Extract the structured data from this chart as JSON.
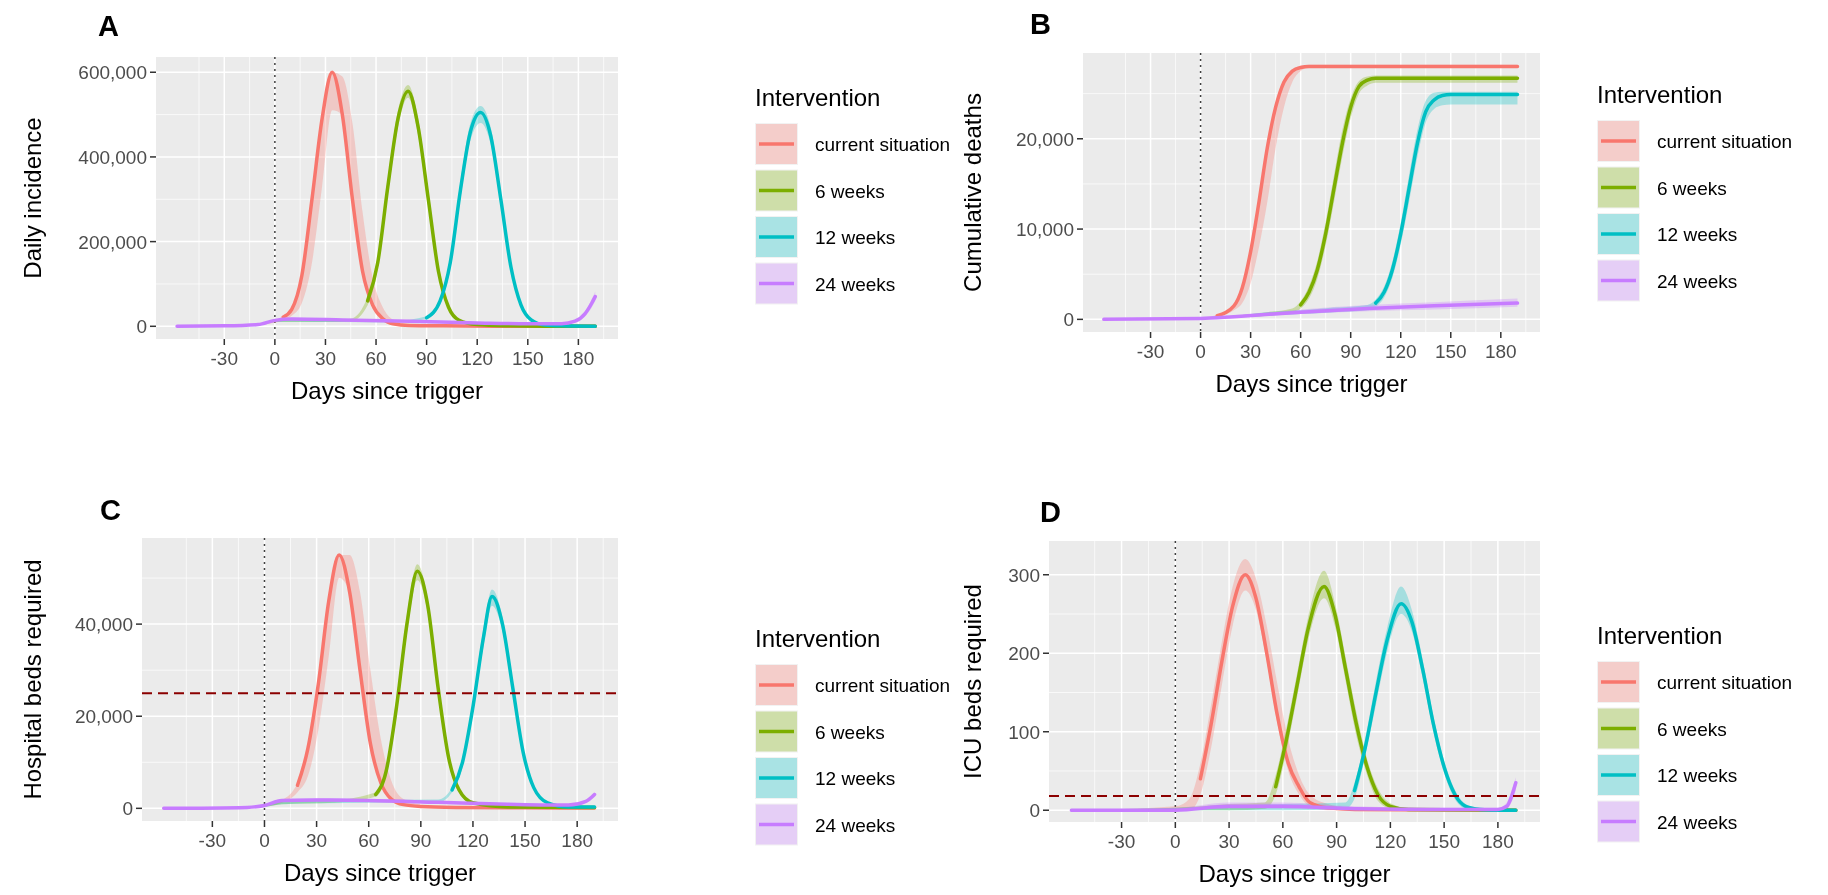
{
  "chart_data": [
    {
      "type": "line",
      "title": "A",
      "xlabel": "Days since trigger",
      "ylabel": "Daily incidence",
      "legend_title": "Intervention",
      "legend": "right",
      "grid": true,
      "xlim": [
        -70.5,
        203.5
      ],
      "xticks": [
        -30,
        0,
        30,
        60,
        90,
        120,
        150,
        180
      ],
      "ylim": [
        -30000,
        636000
      ],
      "yticks": [
        0,
        {
          "value": 200000,
          "label": "200,000"
        },
        {
          "value": 400000,
          "label": "400,000"
        },
        {
          "value": 600000,
          "label": "600,000"
        }
      ],
      "ref_lines": [
        {
          "axis": "x",
          "value": 0,
          "color": "#404040",
          "line_style": "dotted"
        }
      ],
      "series": [
        {
          "name": "current situation",
          "color": "#f8766d",
          "x": [
            -58,
            -30,
            -10,
            5,
            10,
            16,
            22,
            28,
            34,
            40,
            46,
            52,
            58,
            64,
            70,
            80,
            100,
            130,
            160,
            190
          ],
          "values": [
            null,
            null,
            null,
            22000,
            40000,
            120000,
            300000,
            490000,
            600000,
            500000,
            300000,
            130000,
            50000,
            18000,
            6000,
            2000,
            1000,
            0,
            0,
            0
          ],
          "lower": [
            0,
            0,
            3000,
            15000,
            25000,
            55000,
            150000,
            330000,
            510000,
            500000,
            300000,
            130000,
            50000,
            18000,
            6000,
            1000,
            0,
            0,
            0,
            0
          ],
          "upper": [
            0,
            2000,
            5000,
            25000,
            40000,
            120000,
            300000,
            490000,
            600000,
            590000,
            480000,
            270000,
            115000,
            45000,
            16000,
            5000,
            2000,
            1000,
            0,
            0
          ]
        },
        {
          "name": "6 weeks",
          "color": "#7cae00",
          "x": [
            -58,
            -30,
            -10,
            0,
            10,
            30,
            45,
            55,
            61,
            67,
            73,
            79,
            85,
            91,
            97,
            103,
            109,
            120,
            140,
            160,
            190
          ],
          "values": [
            null,
            null,
            null,
            null,
            null,
            null,
            null,
            60000,
            150000,
            330000,
            490000,
            555000,
            470000,
            300000,
            130000,
            45000,
            15000,
            4000,
            1000,
            0,
            0
          ],
          "lower": [
            0,
            0,
            3000,
            10000,
            10000,
            10000,
            12000,
            50000,
            135000,
            310000,
            470000,
            540000,
            450000,
            280000,
            120000,
            40000,
            12000,
            3000,
            0,
            0,
            0
          ],
          "upper": [
            0,
            2000,
            5000,
            14000,
            14000,
            14000,
            18000,
            70000,
            165000,
            350000,
            510000,
            570000,
            490000,
            320000,
            145000,
            52000,
            18000,
            5000,
            1000,
            1000,
            0
          ]
        },
        {
          "name": "12 weeks",
          "color": "#00bfc4",
          "x": [
            -58,
            -30,
            -10,
            0,
            10,
            40,
            70,
            90,
            98,
            104,
            110,
            116,
            122,
            128,
            134,
            140,
            146,
            152,
            160,
            170,
            190
          ],
          "values": [
            null,
            null,
            null,
            null,
            null,
            null,
            null,
            20000,
            60000,
            150000,
            320000,
            460000,
            505000,
            450000,
            300000,
            140000,
            50000,
            15000,
            3000,
            1000,
            0
          ],
          "lower": [
            0,
            0,
            3000,
            10000,
            11000,
            10000,
            9000,
            17000,
            52000,
            135000,
            300000,
            440000,
            480000,
            430000,
            285000,
            130000,
            45000,
            12000,
            2000,
            0,
            0
          ],
          "upper": [
            0,
            2000,
            5000,
            14000,
            15000,
            14000,
            13000,
            24000,
            68000,
            165000,
            340000,
            480000,
            520000,
            470000,
            315000,
            150000,
            56000,
            18000,
            4000,
            1000,
            1000
          ]
        },
        {
          "name": "24 weeks",
          "color": "#c77cff",
          "x": [
            -58,
            -30,
            -10,
            0,
            10,
            40,
            80,
            120,
            150,
            170,
            178,
            184,
            188,
            190
          ],
          "values": [
            0,
            1000,
            4000,
            14000,
            17000,
            15000,
            12000,
            8000,
            6000,
            6000,
            12000,
            30000,
            55000,
            70000
          ],
          "lower": [
            0,
            0,
            3000,
            12000,
            14000,
            12000,
            10000,
            6000,
            4000,
            4000,
            9000,
            24000,
            45000,
            60000
          ],
          "upper": [
            0,
            2000,
            5000,
            16000,
            20000,
            18000,
            14000,
            10000,
            8000,
            8000,
            15000,
            36000,
            65000,
            82000
          ]
        }
      ]
    },
    {
      "type": "line",
      "title": "B",
      "xlabel": "Days since trigger",
      "ylabel": "Cumulative deaths",
      "legend_title": "Intervention",
      "legend": "right",
      "grid": true,
      "xlim": [
        -70.5,
        203.5
      ],
      "xticks": [
        -30,
        0,
        30,
        60,
        90,
        120,
        150,
        180
      ],
      "ylim": [
        -1400,
        29500
      ],
      "yticks": [
        0,
        {
          "value": 10000,
          "label": "10,000"
        },
        {
          "value": 20000,
          "label": "20,000"
        }
      ],
      "ref_lines": [
        {
          "axis": "x",
          "value": 0,
          "color": "#404040",
          "line_style": "dotted"
        }
      ],
      "series": [
        {
          "name": "current situation",
          "color": "#f8766d",
          "x": [
            -58,
            0,
            10,
            20,
            25,
            30,
            35,
            40,
            45,
            50,
            55,
            60,
            65,
            70,
            80,
            100,
            190
          ],
          "values": [
            null,
            null,
            400,
            1500,
            3500,
            7500,
            13000,
            19000,
            23500,
            26300,
            27500,
            27900,
            28000,
            28000,
            28000,
            28000,
            28000
          ],
          "lower": [
            0,
            0,
            300,
            1000,
            1800,
            4000,
            8000,
            13000,
            19000,
            23500,
            26300,
            27500,
            27900,
            27900,
            27900,
            27900,
            27900
          ],
          "upper": [
            0,
            200,
            500,
            1600,
            3700,
            7700,
            13200,
            19200,
            23700,
            26500,
            27700,
            28100,
            28200,
            28200,
            28200,
            28200,
            28200
          ]
        },
        {
          "name": "6 weeks",
          "color": "#7cae00",
          "x": [
            -58,
            0,
            20,
            40,
            55,
            60,
            65,
            70,
            75,
            80,
            85,
            90,
            95,
            100,
            105,
            110,
            120,
            190
          ],
          "values": [
            null,
            null,
            null,
            null,
            null,
            1600,
            3000,
            5500,
            9500,
            14500,
            19500,
            23500,
            25800,
            26500,
            26700,
            26700,
            26700,
            26700
          ],
          "lower": [
            0,
            0,
            200,
            400,
            800,
            1200,
            2300,
            4500,
            8200,
            13000,
            18000,
            22300,
            25000,
            25900,
            26200,
            26200,
            26200,
            26200
          ],
          "upper": [
            0,
            200,
            400,
            800,
            1200,
            2000,
            3700,
            6500,
            10800,
            16000,
            21000,
            24500,
            26400,
            26900,
            27000,
            27000,
            27000,
            27000
          ]
        },
        {
          "name": "12 weeks",
          "color": "#00bfc4",
          "x": [
            -58,
            0,
            20,
            40,
            60,
            80,
            100,
            105,
            110,
            115,
            120,
            125,
            130,
            135,
            140,
            145,
            150,
            160,
            190
          ],
          "values": [
            null,
            null,
            null,
            null,
            null,
            null,
            null,
            1800,
            3000,
            5500,
            9500,
            14500,
            19500,
            23000,
            24300,
            24800,
            24900,
            24900,
            24900
          ],
          "lower": [
            0,
            0,
            200,
            400,
            600,
            800,
            1000,
            1400,
            2400,
            4600,
            8300,
            13000,
            18000,
            21800,
            23300,
            23700,
            23800,
            23800,
            23800
          ],
          "upper": [
            0,
            200,
            400,
            800,
            1000,
            1300,
            1600,
            2200,
            3600,
            6400,
            10700,
            16000,
            21000,
            24200,
            25100,
            25200,
            25200,
            25200,
            25200
          ]
        },
        {
          "name": "24 weeks",
          "color": "#c77cff",
          "x": [
            -58,
            0,
            20,
            60,
            100,
            140,
            190
          ],
          "values": [
            0,
            100,
            300,
            800,
            1200,
            1500,
            1800
          ],
          "lower": [
            0,
            0,
            200,
            600,
            900,
            1100,
            1400
          ],
          "upper": [
            0,
            200,
            400,
            1100,
            1600,
            1900,
            2300
          ]
        }
      ]
    },
    {
      "type": "line",
      "title": "C",
      "xlabel": "Days since trigger",
      "ylabel": "Hospital beds required",
      "legend_title": "Intervention",
      "legend": "right",
      "grid": true,
      "xlim": [
        -70.5,
        203.5
      ],
      "xticks": [
        -30,
        0,
        30,
        60,
        90,
        120,
        150,
        180
      ],
      "ylim": [
        -2750,
        58700
      ],
      "yticks": [
        0,
        {
          "value": 20000,
          "label": "20,000"
        },
        {
          "value": 40000,
          "label": "40,000"
        }
      ],
      "ref_lines": [
        {
          "axis": "x",
          "value": 0,
          "color": "#404040",
          "line_style": "dotted"
        },
        {
          "axis": "y",
          "value": 25000,
          "color": "#8b0000",
          "line_style": "dashed"
        }
      ],
      "series": [
        {
          "name": "current situation",
          "color": "#f8766d",
          "x": [
            -58,
            -10,
            0,
            10,
            19,
            25,
            31,
            37,
            43,
            49,
            55,
            61,
            67,
            73,
            80,
            90,
            110,
            150,
            190
          ],
          "values": [
            null,
            null,
            null,
            null,
            5000,
            13000,
            27000,
            45000,
            55000,
            47000,
            30000,
            14000,
            5500,
            2000,
            800,
            400,
            200,
            100,
            100
          ],
          "lower": [
            0,
            100,
            400,
            1200,
            3500,
            7000,
            17000,
            33000,
            50000,
            47000,
            30000,
            14000,
            5500,
            2000,
            600,
            300,
            100,
            0,
            0
          ],
          "upper": [
            0,
            300,
            800,
            1800,
            5500,
            13000,
            27000,
            45000,
            55000,
            55000,
            47000,
            30000,
            15000,
            6000,
            2000,
            800,
            300,
            200,
            200
          ]
        },
        {
          "name": "6 weeks",
          "color": "#7cae00",
          "x": [
            -58,
            -10,
            0,
            10,
            40,
            64,
            70,
            76,
            82,
            88,
            94,
            100,
            106,
            112,
            120,
            140,
            190
          ],
          "values": [
            null,
            null,
            null,
            null,
            null,
            3000,
            8000,
            22000,
            40000,
            51500,
            44000,
            26000,
            11000,
            4000,
            1200,
            300,
            200
          ],
          "lower": [
            0,
            100,
            300,
            900,
            1200,
            2500,
            7000,
            20000,
            38000,
            49500,
            42500,
            25000,
            10000,
            3500,
            1000,
            200,
            100
          ],
          "upper": [
            0,
            300,
            700,
            1500,
            1800,
            3500,
            9000,
            24000,
            42000,
            53000,
            45500,
            27500,
            12000,
            4500,
            1400,
            400,
            300
          ]
        },
        {
          "name": "12 weeks",
          "color": "#00bfc4",
          "x": [
            -58,
            -10,
            0,
            10,
            60,
            100,
            108,
            114,
            120,
            126,
            131,
            137,
            143,
            149,
            155,
            163,
            175,
            190
          ],
          "values": [
            null,
            null,
            null,
            null,
            null,
            null,
            4000,
            10000,
            22000,
            37000,
            46000,
            40000,
            26000,
            12000,
            4500,
            1200,
            300,
            300
          ],
          "lower": [
            0,
            100,
            300,
            900,
            1200,
            1300,
            3500,
            9000,
            20500,
            35000,
            44000,
            38500,
            25000,
            11000,
            4000,
            1000,
            200,
            200
          ],
          "upper": [
            0,
            300,
            700,
            1500,
            1800,
            1900,
            4500,
            11000,
            23500,
            39000,
            47500,
            41500,
            27000,
            13000,
            5000,
            1400,
            400,
            400
          ]
        },
        {
          "name": "24 weeks",
          "color": "#c77cff",
          "x": [
            -58,
            -10,
            0,
            10,
            30,
            60,
            100,
            140,
            175,
            185,
            190
          ],
          "values": [
            0,
            200,
            600,
            1700,
            1800,
            1700,
            1300,
            900,
            700,
            1500,
            3000
          ],
          "lower": [
            0,
            100,
            400,
            1400,
            1500,
            1400,
            1000,
            700,
            500,
            1200,
            2500
          ],
          "upper": [
            0,
            300,
            800,
            2000,
            2200,
            2000,
            1600,
            1100,
            900,
            1800,
            3600
          ]
        }
      ]
    },
    {
      "type": "line",
      "title": "D",
      "xlabel": "Days since trigger",
      "ylabel": "ICU beds required",
      "legend_title": "Intervention",
      "legend": "right",
      "grid": true,
      "xlim": [
        -70.5,
        203.5
      ],
      "xticks": [
        -30,
        0,
        30,
        60,
        90,
        120,
        150,
        180
      ],
      "ylim": [
        -15,
        343
      ],
      "yticks": [
        0,
        100,
        200,
        300
      ],
      "ref_lines": [
        {
          "axis": "x",
          "value": 0,
          "color": "#404040",
          "line_style": "dotted"
        },
        {
          "axis": "y",
          "value": 18,
          "color": "#8b0000",
          "line_style": "dashed"
        }
      ],
      "series": [
        {
          "name": "current situation",
          "color": "#f8766d",
          "x": [
            -58,
            0,
            8,
            14,
            20,
            26,
            32,
            39,
            45,
            51,
            57,
            63,
            69,
            75,
            85,
            100,
            190
          ],
          "values": [
            null,
            null,
            null,
            40,
            110,
            190,
            260,
            300,
            270,
            200,
            120,
            60,
            30,
            10,
            3,
            1,
            0
          ],
          "lower": [
            0,
            0,
            0,
            20,
            80,
            160,
            235,
            280,
            255,
            190,
            110,
            50,
            20,
            5,
            0,
            0,
            0
          ],
          "upper": [
            0,
            5,
            15,
            60,
            135,
            215,
            285,
            320,
            295,
            235,
            160,
            90,
            45,
            20,
            8,
            3,
            0
          ]
        },
        {
          "name": "6 weeks",
          "color": "#7cae00",
          "x": [
            -58,
            0,
            30,
            50,
            56,
            62,
            68,
            74,
            83,
            89,
            95,
            101,
            107,
            113,
            120,
            130,
            190
          ],
          "values": [
            null,
            null,
            null,
            null,
            30,
            90,
            160,
            230,
            285,
            250,
            180,
            110,
            55,
            20,
            5,
            1,
            0
          ],
          "lower": [
            0,
            0,
            0,
            2,
            20,
            75,
            145,
            215,
            270,
            235,
            165,
            95,
            45,
            12,
            2,
            0,
            0
          ],
          "upper": [
            0,
            3,
            8,
            10,
            45,
            105,
            175,
            245,
            305,
            265,
            195,
            125,
            65,
            28,
            9,
            3,
            0
          ]
        },
        {
          "name": "12 weeks",
          "color": "#00bfc4",
          "x": [
            -58,
            0,
            60,
            95,
            100,
            106,
            112,
            118,
            126,
            132,
            138,
            144,
            150,
            156,
            162,
            170,
            180,
            190
          ],
          "values": [
            null,
            null,
            null,
            null,
            25,
            80,
            150,
            215,
            263,
            240,
            180,
            110,
            55,
            20,
            5,
            1,
            0,
            0
          ],
          "lower": [
            0,
            0,
            0,
            2,
            15,
            70,
            135,
            200,
            250,
            228,
            168,
            100,
            47,
            14,
            2,
            0,
            0,
            0
          ],
          "upper": [
            0,
            3,
            8,
            10,
            35,
            92,
            165,
            230,
            285,
            255,
            192,
            120,
            63,
            26,
            8,
            3,
            2,
            2
          ]
        },
        {
          "name": "24 weeks",
          "color": "#c77cff",
          "x": [
            -58,
            0,
            30,
            60,
            100,
            150,
            180,
            185,
            188,
            190
          ],
          "values": [
            0,
            0,
            5,
            5,
            2,
            1,
            1,
            5,
            20,
            35
          ],
          "lower": [
            0,
            0,
            2,
            2,
            0,
            0,
            0,
            2,
            12,
            25
          ],
          "upper": [
            0,
            3,
            10,
            10,
            5,
            3,
            3,
            10,
            28,
            42
          ]
        }
      ]
    }
  ]
}
